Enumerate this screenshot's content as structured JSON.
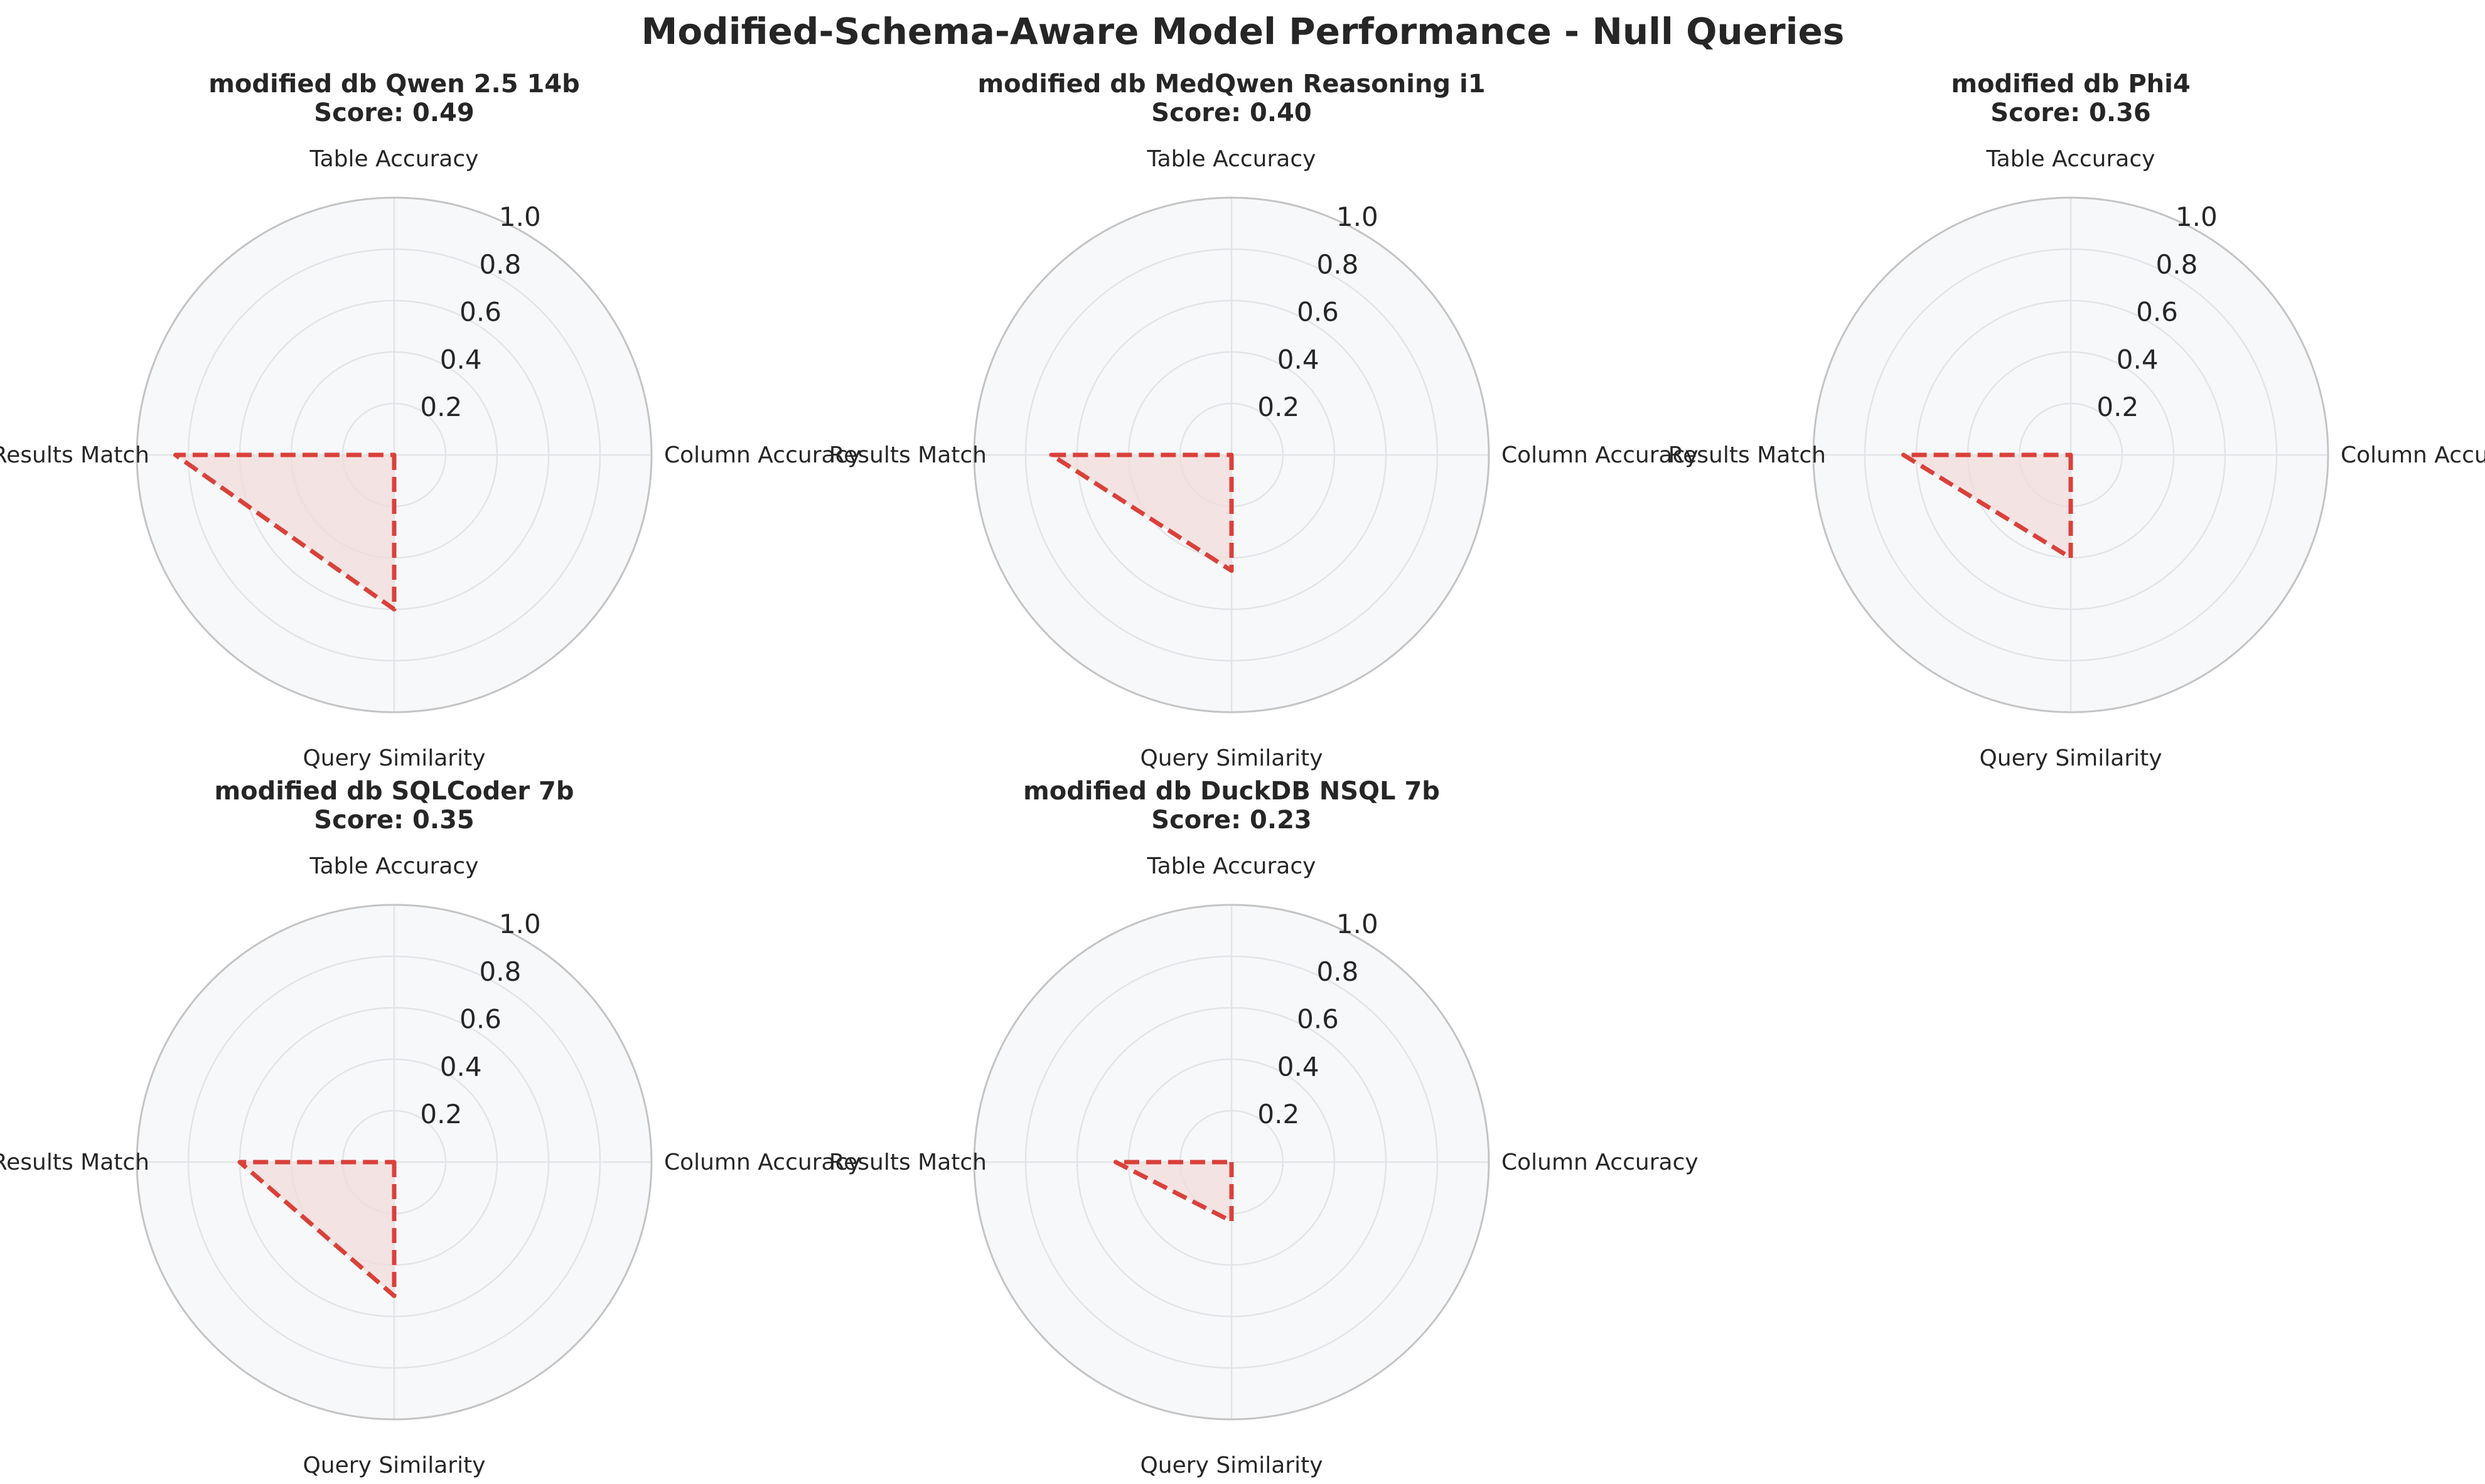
{
  "title": "Modified-Schema-Aware Model Performance - Null Queries",
  "colors": {
    "line": "#d9413a",
    "fill": "#f3dcdb",
    "background": "#f7f8fa",
    "grid": "#e2e4e8",
    "frame": "#c4c4c4",
    "text": "#262626"
  },
  "chart_data": [
    {
      "type": "radar",
      "title": "modified db Qwen 2.5 14b",
      "score_label": "Score: 0.49",
      "axes": [
        "Table Accuracy",
        "Column Accuracy",
        "Query Similarity",
        "Results Match"
      ],
      "values": [
        0.0,
        0.0,
        0.6,
        0.85
      ],
      "rlim": [
        0,
        1.0
      ],
      "rticks": [
        "0.2",
        "0.4",
        "0.6",
        "0.8",
        "1.0"
      ],
      "grid": true,
      "line_style": "dashed"
    },
    {
      "type": "radar",
      "title": "modified db MedQwen Reasoning i1",
      "score_label": "Score: 0.40",
      "axes": [
        "Table Accuracy",
        "Column Accuracy",
        "Query Similarity",
        "Results Match"
      ],
      "values": [
        0.0,
        0.0,
        0.45,
        0.7
      ],
      "rlim": [
        0,
        1.0
      ],
      "rticks": [
        "0.2",
        "0.4",
        "0.6",
        "0.8",
        "1.0"
      ],
      "grid": true,
      "line_style": "dashed"
    },
    {
      "type": "radar",
      "title": "modified db Phi4",
      "score_label": "Score: 0.36",
      "axes": [
        "Table Accuracy",
        "Column Accuracy",
        "Query Similarity",
        "Results Match"
      ],
      "values": [
        0.0,
        0.0,
        0.4,
        0.65
      ],
      "rlim": [
        0,
        1.0
      ],
      "rticks": [
        "0.2",
        "0.4",
        "0.6",
        "0.8",
        "1.0"
      ],
      "grid": true,
      "line_style": "dashed"
    },
    {
      "type": "radar",
      "title": "modified db SQLCoder 7b",
      "score_label": "Score: 0.35",
      "axes": [
        "Table Accuracy",
        "Column Accuracy",
        "Query Similarity",
        "Results Match"
      ],
      "values": [
        0.0,
        0.0,
        0.52,
        0.6
      ],
      "rlim": [
        0,
        1.0
      ],
      "rticks": [
        "0.2",
        "0.4",
        "0.6",
        "0.8",
        "1.0"
      ],
      "grid": true,
      "line_style": "dashed"
    },
    {
      "type": "radar",
      "title": "modified db DuckDB NSQL 7b",
      "score_label": "Score: 0.23",
      "axes": [
        "Table Accuracy",
        "Column Accuracy",
        "Query Similarity",
        "Results Match"
      ],
      "values": [
        0.0,
        0.0,
        0.23,
        0.45
      ],
      "rlim": [
        0,
        1.0
      ],
      "rticks": [
        "0.2",
        "0.4",
        "0.6",
        "0.8",
        "1.0"
      ],
      "grid": true,
      "line_style": "dashed"
    }
  ]
}
